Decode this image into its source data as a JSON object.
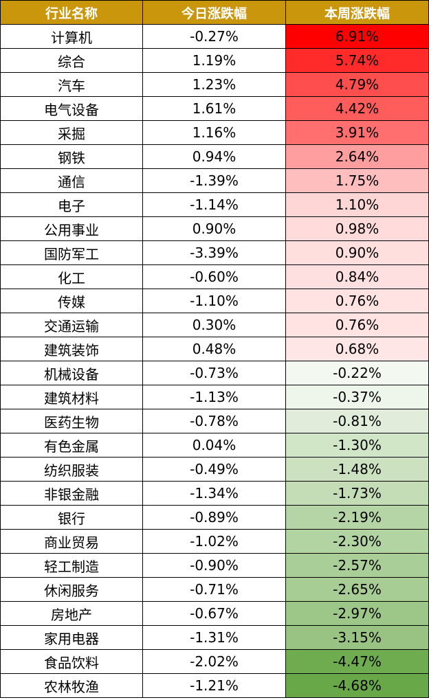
{
  "table": {
    "header": [
      "行业名称",
      "今日涨跌幅",
      "本周涨跌幅"
    ],
    "rows": [
      [
        "计算机",
        "-0.27%",
        "6.91%"
      ],
      [
        "综合",
        "1.19%",
        "5.74%"
      ],
      [
        "汽车",
        "1.23%",
        "4.79%"
      ],
      [
        "电气设备",
        "1.61%",
        "4.42%"
      ],
      [
        "采掘",
        "1.16%",
        "3.91%"
      ],
      [
        "钢铁",
        "0.94%",
        "2.64%"
      ],
      [
        "通信",
        "-1.39%",
        "1.75%"
      ],
      [
        "电子",
        "-1.14%",
        "1.10%"
      ],
      [
        "公用事业",
        "0.90%",
        "0.98%"
      ],
      [
        "国防军工",
        "-3.39%",
        "0.90%"
      ],
      [
        "化工",
        "-0.60%",
        "0.84%"
      ],
      [
        "传媒",
        "-1.10%",
        "0.76%"
      ],
      [
        "交通运输",
        "0.30%",
        "0.76%"
      ],
      [
        "建筑装饰",
        "0.48%",
        "0.68%"
      ],
      [
        "机械设备",
        "-0.73%",
        "-0.22%"
      ],
      [
        "建筑材料",
        "-1.13%",
        "-0.37%"
      ],
      [
        "医药生物",
        "-0.78%",
        "-0.81%"
      ],
      [
        "有色金属",
        "0.04%",
        "-1.30%"
      ],
      [
        "纺织服装",
        "-0.49%",
        "-1.48%"
      ],
      [
        "非银金融",
        "-1.34%",
        "-1.73%"
      ],
      [
        "银行",
        "-0.89%",
        "-2.19%"
      ],
      [
        "商业贸易",
        "-1.02%",
        "-2.30%"
      ],
      [
        "轻工制造",
        "-0.90%",
        "-2.57%"
      ],
      [
        "休闲服务",
        "-0.71%",
        "-2.65%"
      ],
      [
        "房地产",
        "-0.67%",
        "-2.97%"
      ],
      [
        "家用电器",
        "-1.31%",
        "-3.15%"
      ],
      [
        "食品饮料",
        "-2.02%",
        "-4.47%"
      ],
      [
        "农林牧渔",
        "-1.21%",
        "-4.68%"
      ]
    ]
  }
}
